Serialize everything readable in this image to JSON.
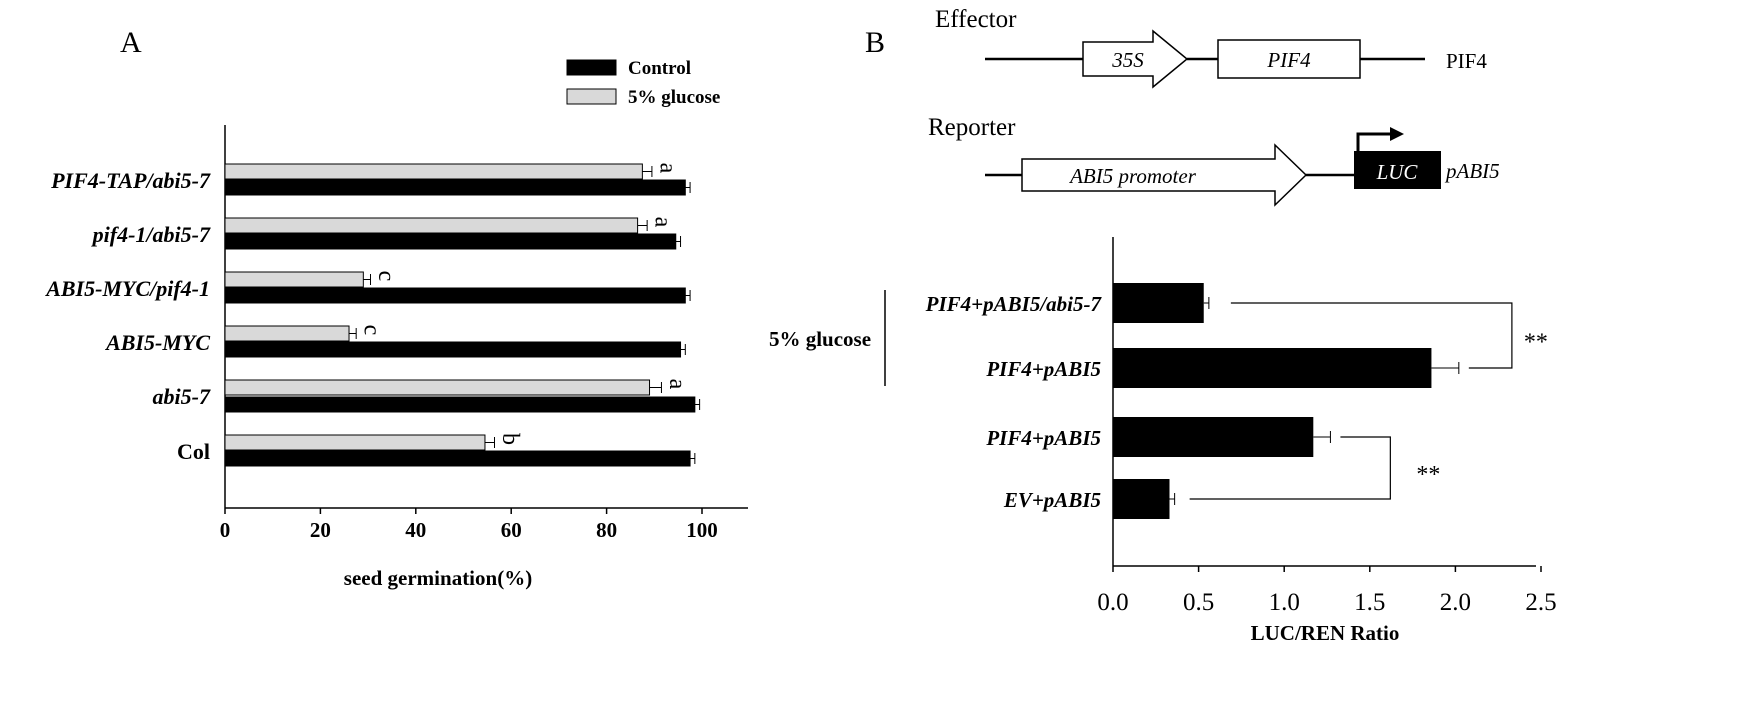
{
  "panelA": {
    "label": "A",
    "legend": [
      {
        "name": "Control",
        "color": "#000000"
      },
      {
        "name": "5% glucose",
        "color": "#d9d9d9"
      }
    ],
    "chart_data": {
      "type": "bar",
      "orientation": "horizontal",
      "xlabel": "seed germination(%)",
      "ylabel": "",
      "xlim": [
        0,
        110
      ],
      "xticks": [
        0,
        20,
        40,
        60,
        80,
        100
      ],
      "categories": [
        "PIF4-TAP/abi5-7",
        "pif4-1/abi5-7",
        "ABI5-MYC/pif4-1",
        "ABI5-MYC",
        "abi5-7",
        "Col"
      ],
      "series": [
        {
          "name": "5% glucose",
          "values": [
            87.5,
            86.5,
            29,
            26,
            89,
            54.5
          ],
          "errors": [
            2,
            2,
            1.5,
            1.5,
            2.5,
            2
          ]
        },
        {
          "name": "Control",
          "values": [
            96.5,
            94.5,
            96.5,
            95.5,
            98.5,
            97.5
          ],
          "errors": [
            1,
            1,
            1,
            1,
            1,
            1
          ]
        }
      ],
      "significance_letters": [
        "a",
        "a",
        "c",
        "c",
        "a",
        "b"
      ]
    }
  },
  "panelB": {
    "label": "B",
    "constructs": {
      "effector_title": "Effector",
      "reporter_title": "Reporter",
      "promoter_35s": "35S",
      "gene_pif4": "PIF4",
      "effector_name": "PIF4",
      "abi5_promoter": "ABI5 promoter",
      "luc": "LUC",
      "reporter_name": "pABI5"
    },
    "group_label": "5% glucose",
    "chart_data": {
      "type": "bar",
      "orientation": "horizontal",
      "xlabel": "LUC/REN Ratio",
      "ylabel": "",
      "xlim": [
        0,
        2.5
      ],
      "xticks": [
        "0.0",
        "0.5",
        "1.0",
        "1.5",
        "2.0",
        "2.5"
      ],
      "categories": [
        "PIF4+pABI5/abi5-7",
        "PIF4+pABI5",
        "PIF4+pABI5",
        "EV+pABI5"
      ],
      "series": [
        {
          "name": "LUC/REN Ratio",
          "values": [
            0.53,
            1.86,
            1.17,
            0.33
          ],
          "errors": [
            0.03,
            0.16,
            0.1,
            0.03
          ]
        }
      ],
      "significance": [
        {
          "between": [
            0,
            1
          ],
          "label": "**"
        },
        {
          "between": [
            2,
            3
          ],
          "label": "**"
        }
      ]
    }
  }
}
